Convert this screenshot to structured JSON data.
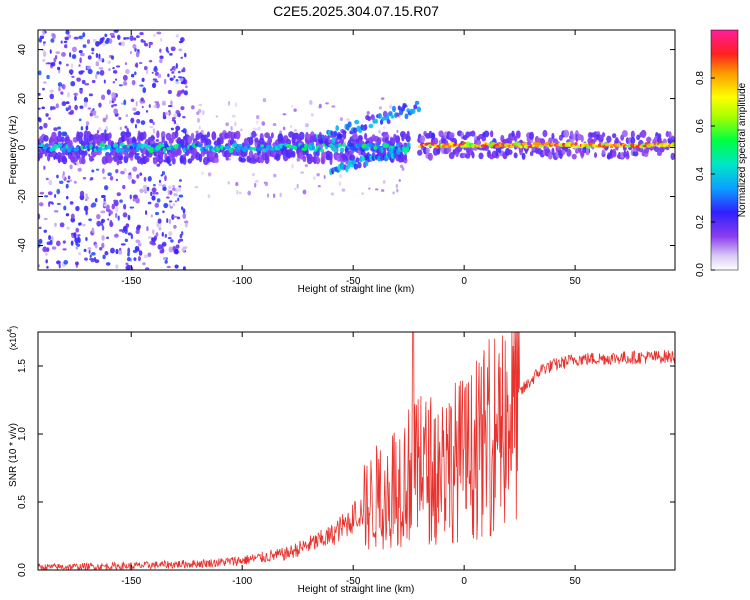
{
  "title": "C2E5.2025.304.07.15.R07",
  "chart_data": [
    {
      "type": "heatmap",
      "name": "spectrogram",
      "xlabel": "Height of straight line (km)",
      "ylabel": "Frequency (Hz)",
      "xlim": [
        -192,
        95
      ],
      "ylim": [
        -50,
        48
      ],
      "xticks": [
        -150,
        -100,
        -50,
        0,
        50
      ],
      "xtick_labels": [
        "-150",
        "-100",
        "-50",
        "0",
        "50"
      ],
      "yticks": [
        -40,
        -20,
        0,
        20,
        40
      ],
      "ytick_labels": [
        "-40",
        "-20",
        "0",
        "20",
        "40"
      ],
      "colorbar": {
        "label": "Normalized spectral amplitude",
        "range": [
          0,
          1
        ],
        "ticks": [
          0.0,
          0.2,
          0.4,
          0.6,
          0.8
        ],
        "tick_labels": [
          "0.0",
          "0.2",
          "0.4",
          "0.6",
          "0.8"
        ]
      },
      "features": [
        {
          "name": "main-band",
          "x_range": [
            -192,
            -25
          ],
          "freq_center": 0,
          "freq_halfwidth": 4,
          "amplitude": 0.35
        },
        {
          "name": "drift-branch-up",
          "x_range": [
            -70,
            -20
          ],
          "freq_start": 2,
          "freq_end": 17,
          "amplitude": 0.3
        },
        {
          "name": "drift-branch-down",
          "x_range": [
            -60,
            -25
          ],
          "freq_start": -10,
          "freq_end": 0,
          "amplitude": 0.3
        },
        {
          "name": "strong-band",
          "x_range": [
            -20,
            95
          ],
          "freq_center": 1,
          "freq_halfwidth": 2,
          "amplitude": 0.85
        },
        {
          "name": "scatter-noise",
          "x_range": [
            -192,
            -125
          ],
          "freq_range": [
            -50,
            48
          ],
          "amplitude": 0.15
        }
      ]
    },
    {
      "type": "line",
      "name": "snr-trace",
      "xlabel": "Height of straight line (km)",
      "ylabel": "SNR (10 * v/v)",
      "y_multiplier_label": "(x10",
      "y_multiplier_exp": "4",
      "y_multiplier_close": ")",
      "xlim": [
        -192,
        95
      ],
      "ylim": [
        0,
        1.75
      ],
      "xticks": [
        -150,
        -100,
        -50,
        0,
        50
      ],
      "xtick_labels": [
        "-150",
        "-100",
        "-50",
        "0",
        "50"
      ],
      "yticks": [
        0,
        0.5,
        1.0,
        1.5
      ],
      "ytick_labels": [
        "0.0",
        "0.5",
        "1.0",
        "1.5"
      ],
      "color": "#e8322d",
      "envelope_points": [
        [
          -192,
          0.02
        ],
        [
          -150,
          0.03
        ],
        [
          -115,
          0.05
        ],
        [
          -100,
          0.07
        ],
        [
          -80,
          0.12
        ],
        [
          -60,
          0.25
        ],
        [
          -45,
          0.45
        ],
        [
          -35,
          0.6
        ],
        [
          -25,
          0.7
        ],
        [
          -15,
          0.75
        ],
        [
          -5,
          0.8
        ],
        [
          5,
          0.85
        ],
        [
          15,
          1.05
        ],
        [
          25,
          1.3
        ],
        [
          35,
          1.48
        ],
        [
          50,
          1.55
        ],
        [
          70,
          1.56
        ],
        [
          95,
          1.57
        ]
      ],
      "peak_value": 1.75,
      "peak_x": -23
    }
  ]
}
